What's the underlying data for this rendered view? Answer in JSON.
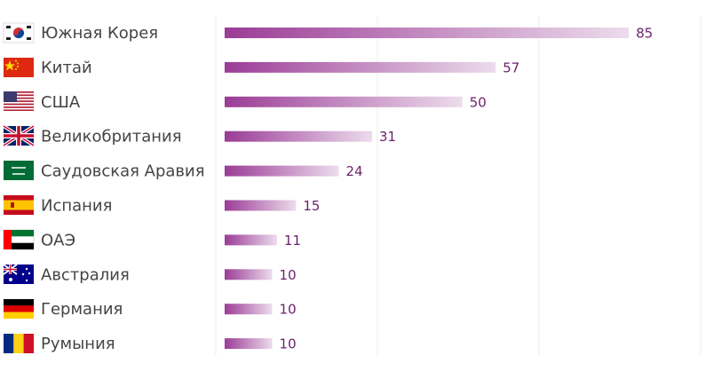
{
  "chart_data": {
    "type": "bar",
    "orientation": "horizontal",
    "categories": [
      "Южная Корея",
      "Китай",
      "США",
      "Великобритания",
      "Саудовская Аравия",
      "Испания",
      "ОАЭ",
      "Австралия",
      "Германия",
      "Румыния"
    ],
    "values": [
      85,
      57,
      50,
      31,
      24,
      15,
      11,
      10,
      10,
      10
    ],
    "color": "#9b3c96",
    "xlim": [
      0,
      90
    ],
    "grid": true
  }
}
